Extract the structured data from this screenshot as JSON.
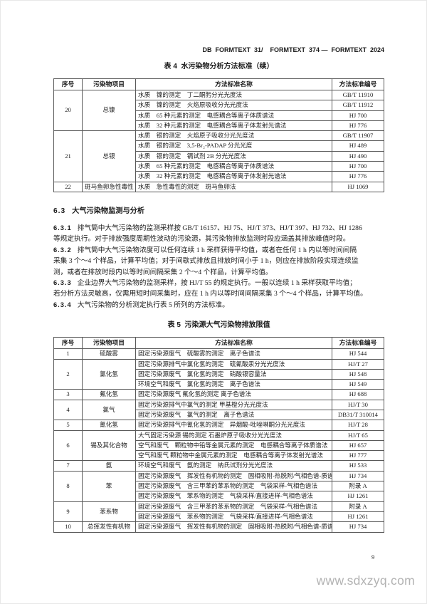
{
  "page": {
    "doc_code": "DB  FORMTEXT  31/    FORMTEXT  374 —  FORMTEXT  2024",
    "page_number": "9",
    "watermark": "www.sdxzyq.com"
  },
  "table4": {
    "title": "表 4  水污染物分析方法标准（续）",
    "headers": {
      "no": "序号",
      "item": "污染物项目",
      "name": "方法标准名称",
      "code": "方法标准编号"
    },
    "groups": [
      {
        "no": "20",
        "item": "总镍",
        "methods": [
          {
            "name": "水质　镍的测定　丁二酮肟分光光度法",
            "code": "GB/T 11910"
          },
          {
            "name": "水质　镍的测定　火焰原吸收分光光度法",
            "code": "GB/T 11912"
          },
          {
            "name": "水质　65 种元素的测定　电感耦合等离子体质谱法",
            "code": "HJ 700"
          },
          {
            "name": "水质　32 种元素的测定　电感耦合等离子体发射光谱法",
            "code": "HJ 776"
          }
        ]
      },
      {
        "no": "21",
        "item": "总银",
        "methods": [
          {
            "name": "水质　银的测定　火焰原子吸收分光光度法",
            "code": "GB/T 11907"
          },
          {
            "name": "水质　银的测定　3,5-Br₂-PADAP 分光光度",
            "code": "HJ 489"
          },
          {
            "name": "水质　银的测定　镉试剂 2B 分光光度法",
            "code": "HJ 490"
          },
          {
            "name": "水质　65 种元素的测定　电感耦合等离子体质谱法",
            "code": "HJ 700"
          },
          {
            "name": "水质　32 种元素的测定　电感耦合等离子体发射光谱法",
            "code": "HJ 776"
          }
        ]
      },
      {
        "no": "22",
        "item": "斑马鱼卵急性毒性",
        "methods": [
          {
            "name": "水质　急性毒性的测定　斑马鱼卵法",
            "code": "HJ 1069"
          }
        ]
      }
    ]
  },
  "section": {
    "heading_num": "6.3",
    "heading_text": "大气污染物监测与分析",
    "paragraphs": [
      {
        "num": "6.3.1",
        "lines": [
          "排气筒中大气污染物的监测采样按 GB/T 16157、HJ 75、HJ/T 373、HJ/T 397、HJ 732、HJ 1286",
          "等规定执行。对于排放强度周期性波动的污染源，其污染物排放监测时段应涵盖其排放峰值时段。"
        ]
      },
      {
        "num": "6.3.2",
        "lines": [
          "排气筒中大气污染物浓度可以任何连续 1 h 采样获得平均值，或者在任何 1 h 内以等时间间隔",
          "采集 3 个～4 个样品，计算平均值；对于间歇式排放且排放时间小于 1 h，则应在排放阶段实现连续监",
          "测，或者在排放时段内以等时间间隔采集 2 个～4 个样品，计算平均值。"
        ]
      },
      {
        "num": "6.3.3",
        "lines": [
          "企业边界大气污染物的监测采样，按 HJ/T 55 的规定执行。一般以连续 1 h 采样获取平均值；",
          "若分析方法灵敏高，仅需用短时间采集时，应在 1 h 内以等时间间隔采集 3 个～4 个样品，计算平均值。"
        ]
      },
      {
        "num": "6.3.4",
        "lines": [
          "大气污染物的分析测定执行表 5 所列的方法标准。"
        ]
      }
    ]
  },
  "table5": {
    "title": "表 5  污染源大气污染物排放限值",
    "headers": {
      "no": "序号",
      "item": "污染物项目",
      "name": "方法标准名称",
      "code": "方法标准编号"
    },
    "groups": [
      {
        "no": "1",
        "item": "硫酸雾",
        "methods": [
          {
            "name": "固定污染源废气　硫酸雾的测定　离子色谱法",
            "code": "HJ 544"
          }
        ]
      },
      {
        "no": "2",
        "item": "氯化氢",
        "methods": [
          {
            "name": "固定污染源排气中氯化氢的测定　硫氰酸汞分光光度法",
            "code": "HJ/T 27"
          },
          {
            "name": "固定污染源废气　氯化氢的测定　硝酸银容量法",
            "code": "HJ 548"
          },
          {
            "name": "环境空气和废气　氯化氢的测定　离子色谱法",
            "code": "HJ 549"
          }
        ]
      },
      {
        "no": "3",
        "item": "氟化氢",
        "methods": [
          {
            "name": "固定污染源废气 氟化氢的测定 离子色谱法",
            "code": "HJ 688"
          }
        ]
      },
      {
        "no": "4",
        "item": "氯气",
        "methods": [
          {
            "name": "固定污染源排气中氯气的测定 甲基橙分光光度法",
            "code": "HJ/T 30"
          },
          {
            "name": "固定污染源废气　氯气的测定　离子色谱法",
            "code": "DB31/T 310014"
          }
        ]
      },
      {
        "no": "5",
        "item": "氰化氢",
        "methods": [
          {
            "name": "固定污染源排气中氰化氢的测定　异烟酸-吡唑啉酮分光光度法",
            "code": "HJ/T 28"
          }
        ]
      },
      {
        "no": "6",
        "item": "锡及其化合物",
        "methods": [
          {
            "name": "大气固定污染源 锡的测定 石墨炉原子吸收分光光度法",
            "code": "HJ/T 65"
          },
          {
            "name": "空气和废气　颗粒物中铅等金属元素的测定　电感耦合等离子体质谱法",
            "code": "HJ 657"
          },
          {
            "name": "空气和废气 颗粒物中金属元素的测定　电感耦合等离子体发射光谱法",
            "code": "HJ 777"
          }
        ]
      },
      {
        "no": "7",
        "item": "氨",
        "methods": [
          {
            "name": "环境空气和废气　氨的测定　纳氏试剂分光光度法",
            "code": "HJ 533"
          }
        ]
      },
      {
        "no": "8",
        "item": "苯",
        "methods": [
          {
            "name": "固定污染源废气　挥发性有机物的测定　固相吸附-热脱附/气相色谱-质谱法",
            "code": "HJ 734"
          },
          {
            "name": "固定污染源废气　含三甲苯的苯系物的测定　气袋采样-气相色谱法",
            "code": "附录 A"
          },
          {
            "name": "固定污染源废气　苯系物的测定　气袋采样/直接进样-气相色谱法",
            "code": "HJ 1261"
          }
        ]
      },
      {
        "no": "9",
        "item": "苯系物",
        "methods": [
          {
            "name": "固定污染源废气　含三甲苯的苯系物的测定　气袋采样-气相色谱法",
            "code": "附录 A"
          },
          {
            "name": "固定污染源废气　苯系物的测定　气袋采样/直接进样-气相色谱法",
            "code": "HJ 1261"
          }
        ]
      },
      {
        "no": "10",
        "item": "总挥发性有机物",
        "methods": [
          {
            "name": "固定污染源废气　挥发性有机物的测定　固相吸附-热脱附/气相色谱-质谱法",
            "code": "HJ 734"
          }
        ]
      }
    ]
  }
}
